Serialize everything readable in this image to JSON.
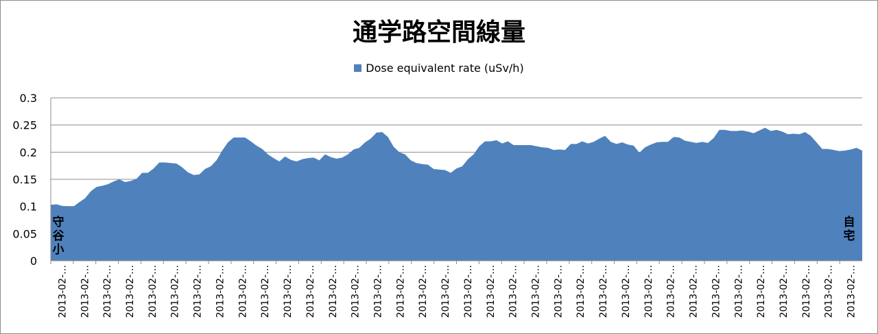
{
  "chart_data": {
    "type": "area",
    "title": "通学路空間線量",
    "series": [
      {
        "name": "Dose equivalent rate (uSv/h)",
        "color": "#4f81bd",
        "values": [
          0.103,
          0.104,
          0.101,
          0.1,
          0.1,
          0.108,
          0.115,
          0.128,
          0.136,
          0.138,
          0.141,
          0.146,
          0.15,
          0.145,
          0.147,
          0.151,
          0.162,
          0.162,
          0.17,
          0.181,
          0.181,
          0.18,
          0.179,
          0.172,
          0.163,
          0.158,
          0.159,
          0.169,
          0.174,
          0.185,
          0.203,
          0.218,
          0.227,
          0.227,
          0.227,
          0.22,
          0.212,
          0.206,
          0.196,
          0.189,
          0.183,
          0.192,
          0.186,
          0.183,
          0.187,
          0.189,
          0.19,
          0.185,
          0.196,
          0.191,
          0.188,
          0.19,
          0.196,
          0.205,
          0.208,
          0.218,
          0.225,
          0.236,
          0.237,
          0.228,
          0.21,
          0.2,
          0.196,
          0.185,
          0.18,
          0.178,
          0.177,
          0.169,
          0.168,
          0.167,
          0.162,
          0.17,
          0.174,
          0.187,
          0.196,
          0.211,
          0.22,
          0.22,
          0.222,
          0.216,
          0.22,
          0.213,
          0.213,
          0.213,
          0.213,
          0.211,
          0.209,
          0.208,
          0.204,
          0.205,
          0.204,
          0.215,
          0.215,
          0.22,
          0.216,
          0.219,
          0.225,
          0.23,
          0.219,
          0.215,
          0.218,
          0.214,
          0.212,
          0.199,
          0.209,
          0.214,
          0.218,
          0.219,
          0.219,
          0.228,
          0.227,
          0.221,
          0.219,
          0.217,
          0.219,
          0.217,
          0.226,
          0.241,
          0.241,
          0.239,
          0.239,
          0.24,
          0.238,
          0.235,
          0.24,
          0.245,
          0.239,
          0.241,
          0.238,
          0.233,
          0.234,
          0.233,
          0.237,
          0.23,
          0.218,
          0.206,
          0.206,
          0.204,
          0.202,
          0.203,
          0.205,
          0.208,
          0.203
        ]
      }
    ],
    "x_tick_labels": [
      "2013-02-…",
      "2013-02-…",
      "2013-02-…",
      "2013-02-…",
      "2013-02-…",
      "2013-02-…",
      "2013-02-…",
      "2013-02-…",
      "2013-02-…",
      "2013-02-…",
      "2013-02-…",
      "2013-02-…",
      "2013-02-…",
      "2013-02-…",
      "2013-02-…",
      "2013-02-…",
      "2013-02-…",
      "2013-02-…",
      "2013-02-…",
      "2013-02-…",
      "2013-02-…",
      "2013-02-…",
      "2013-02-…",
      "2013-02-…",
      "2013-02-…",
      "2013-02-…",
      "2013-02-…",
      "2013-02-…",
      "2013-02-…",
      "2013-02-…",
      "2013-02-…",
      "2013-02-…",
      "2013-02-…",
      "2013-02-…",
      "2013-02-…",
      "2013-02-…"
    ],
    "y_ticks": [
      "0",
      "0.05",
      "0.1",
      "0.15",
      "0.2",
      "0.25",
      "0.3"
    ],
    "ylim": [
      0,
      0.3
    ],
    "grid": true,
    "legend_position": "top-center",
    "annotations": {
      "start": [
        "守",
        "谷",
        "小"
      ],
      "end": [
        "自",
        "宅"
      ]
    },
    "xlabel": "",
    "ylabel": ""
  }
}
